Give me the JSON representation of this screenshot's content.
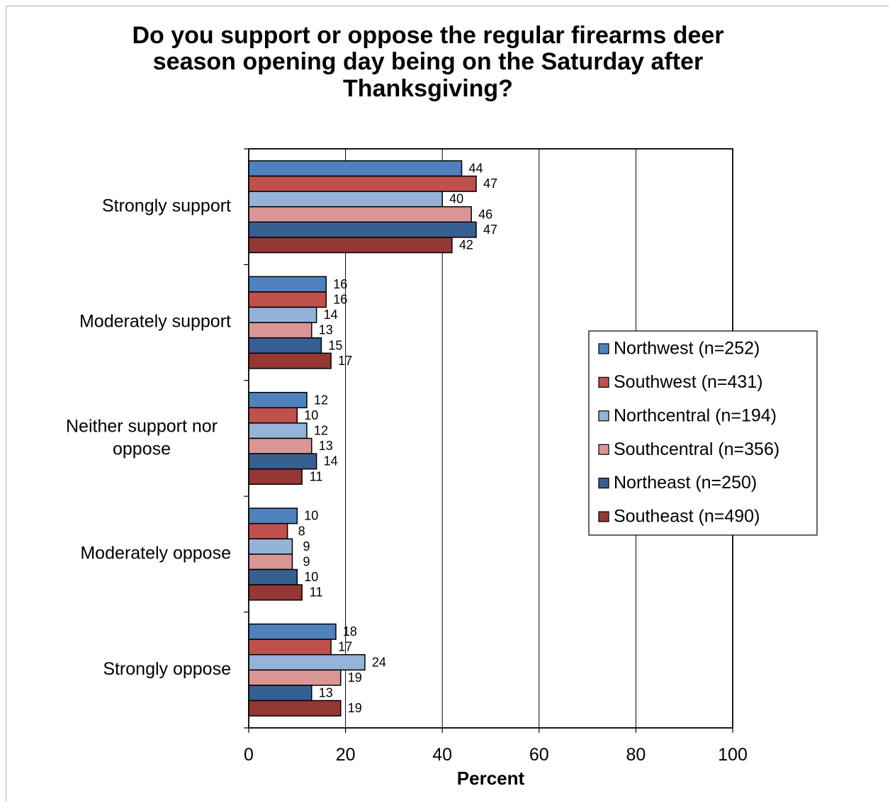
{
  "chart_data": {
    "type": "bar",
    "orientation": "horizontal",
    "title": "Do you support or oppose the regular firearms deer\nseason opening day being on the Saturday after\nThanksgiving?",
    "xlabel": "Percent",
    "ylabel": "",
    "xlim": [
      0,
      100
    ],
    "xticks": [
      "0",
      "20",
      "40",
      "60",
      "80",
      "100"
    ],
    "grid": "vertical",
    "legend_position": "right",
    "categories": [
      "Strongly support",
      "Moderately support",
      "Neither support nor\noppose",
      "Moderately oppose",
      "Strongly oppose"
    ],
    "series": [
      {
        "name": "Northwest (n=252)",
        "color": "#4f81bd",
        "values": [
          44,
          16,
          12,
          10,
          18
        ]
      },
      {
        "name": "Southwest (n=431)",
        "color": "#c0504d",
        "values": [
          47,
          16,
          10,
          8,
          17
        ]
      },
      {
        "name": "Northcentral (n=194)",
        "color": "#95b3d7",
        "values": [
          40,
          14,
          12,
          9,
          24
        ]
      },
      {
        "name": "Southcentral (n=356)",
        "color": "#d99694",
        "values": [
          46,
          13,
          13,
          9,
          19
        ]
      },
      {
        "name": "Northeast (n=250)",
        "color": "#376092",
        "values": [
          47,
          15,
          14,
          10,
          13
        ]
      },
      {
        "name": "Southeast (n=490)",
        "color": "#953735",
        "values": [
          42,
          17,
          11,
          11,
          19
        ]
      }
    ]
  }
}
